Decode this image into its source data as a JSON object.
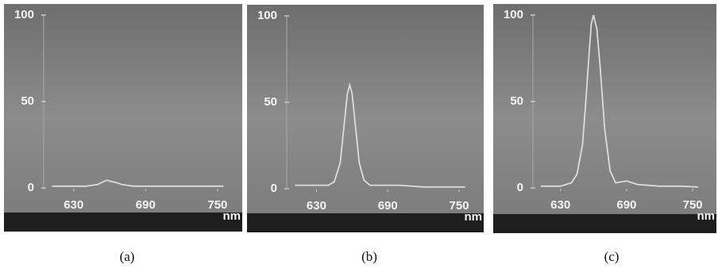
{
  "chart_data": [
    {
      "type": "line",
      "caption": "(a)",
      "x_label": "nm",
      "x": [
        612,
        620,
        630,
        640,
        645,
        650,
        653,
        656,
        658,
        660,
        663,
        666,
        670,
        675,
        680,
        690,
        700,
        720,
        740,
        755
      ],
      "values": [
        1,
        1,
        1,
        1,
        1.5,
        2,
        3,
        4,
        4.5,
        4,
        3.5,
        3,
        2,
        1.5,
        1,
        1,
        1,
        1,
        1,
        1
      ],
      "color": "#dcdcdc",
      "xlim": [
        605,
        760
      ],
      "ylim": [
        0,
        100
      ],
      "xticks": [
        630,
        690,
        750
      ],
      "yticks": [
        0,
        50,
        100
      ]
    },
    {
      "type": "line",
      "caption": "(b)",
      "x_label": "nm",
      "x": [
        612,
        620,
        630,
        640,
        645,
        650,
        653,
        656,
        658,
        660,
        663,
        666,
        670,
        675,
        680,
        690,
        700,
        720,
        740,
        755
      ],
      "values": [
        2,
        2,
        2,
        2,
        4,
        15,
        35,
        55,
        60,
        55,
        35,
        15,
        5,
        2,
        2,
        2,
        2,
        1,
        1,
        1
      ],
      "color": "#dcdcdc",
      "xlim": [
        605,
        760
      ],
      "ylim": [
        0,
        100
      ],
      "xticks": [
        630,
        690,
        750
      ],
      "yticks": [
        0,
        50,
        100
      ]
    },
    {
      "type": "line",
      "caption": "(c)",
      "x_label": "nm",
      "x": [
        612,
        620,
        630,
        640,
        645,
        650,
        653,
        656,
        658,
        660,
        663,
        666,
        670,
        675,
        680,
        690,
        700,
        720,
        740,
        755
      ],
      "values": [
        1,
        1,
        1,
        3,
        8,
        25,
        50,
        78,
        95,
        100,
        92,
        70,
        35,
        10,
        3,
        4,
        2,
        1,
        1,
        0.5
      ],
      "color": "#dcdcdc",
      "xlim": [
        605,
        760
      ],
      "ylim": [
        0,
        100
      ],
      "xticks": [
        630,
        690,
        750
      ],
      "yticks": [
        0,
        50,
        100
      ]
    }
  ]
}
